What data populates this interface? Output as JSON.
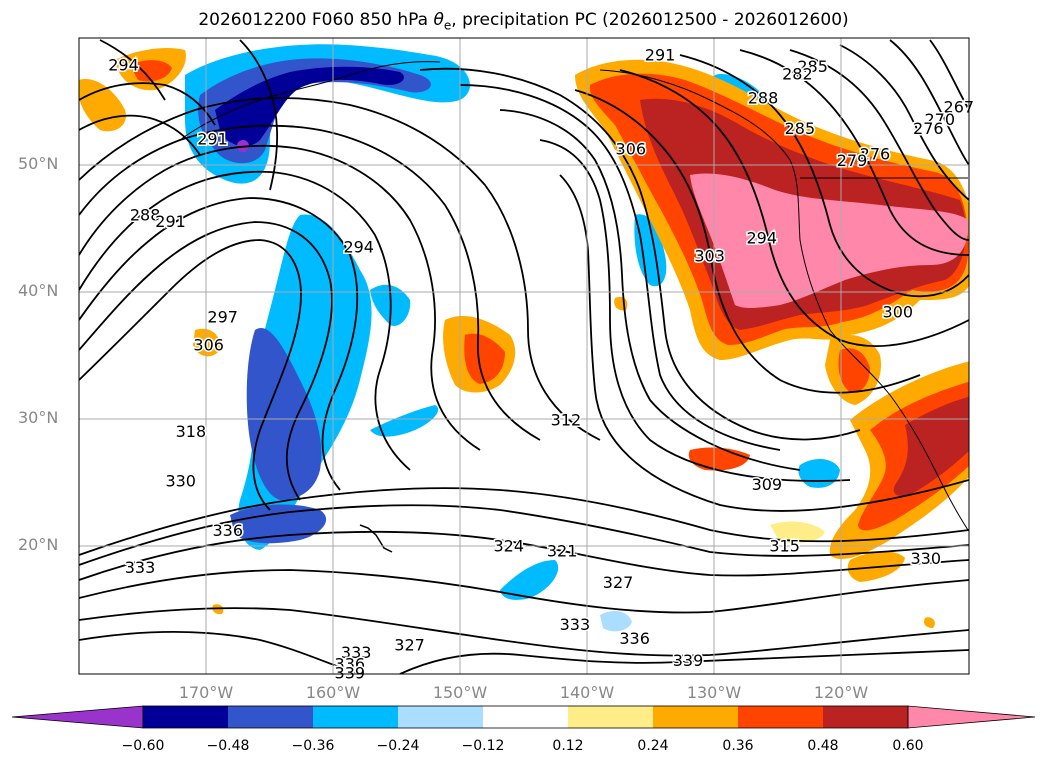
{
  "title": {
    "prefix": "2026012200 F060 850 hPa ",
    "theta": "θ",
    "theta_sub": "e",
    "suffix": ", precipitation PC (2026012500 - 2026012600)"
  },
  "latitude_labels": [
    "50°N",
    "40°N",
    "30°N",
    "20°N"
  ],
  "longitude_labels": [
    "170°W",
    "160°W",
    "150°W",
    "140°W",
    "130°W",
    "120°W"
  ],
  "colorbar": {
    "ticks": [
      "−0.60",
      "−0.48",
      "−0.36",
      "−0.24",
      "−0.12",
      "0.12",
      "0.24",
      "0.36",
      "0.48",
      "0.60"
    ],
    "colors": [
      "#9933cc",
      "#000099",
      "#3355cc",
      "#00bbff",
      "#aaddff",
      "#ffffff",
      "#ffee88",
      "#ffaa00",
      "#ff4400",
      "#bb2222",
      "#ff88aa"
    ]
  },
  "contour_labels": [
    {
      "text": "294",
      "lon": -176.5,
      "lat": 57.8
    },
    {
      "text": "291",
      "lon": -169.5,
      "lat": 52.0
    },
    {
      "text": "288",
      "lon": -174.8,
      "lat": 46.0
    },
    {
      "text": "291",
      "lon": -172.8,
      "lat": 45.5
    },
    {
      "text": "297",
      "lon": -168.7,
      "lat": 38.0
    },
    {
      "text": "306",
      "lon": -169.8,
      "lat": 35.8
    },
    {
      "text": "294",
      "lon": -158.0,
      "lat": 43.5
    },
    {
      "text": "291",
      "lon": -134.3,
      "lat": 58.6
    },
    {
      "text": "306",
      "lon": -136.6,
      "lat": 51.2
    },
    {
      "text": "285",
      "lon": -122.3,
      "lat": 57.7
    },
    {
      "text": "282",
      "lon": -123.5,
      "lat": 57.1
    },
    {
      "text": "288",
      "lon": -126.2,
      "lat": 55.2
    },
    {
      "text": "285",
      "lon": -123.3,
      "lat": 52.8
    },
    {
      "text": "267",
      "lon": -110.8,
      "lat": 54.5
    },
    {
      "text": "270",
      "lon": -112.3,
      "lat": 53.5
    },
    {
      "text": "276",
      "lon": -113.2,
      "lat": 52.8
    },
    {
      "text": "276",
      "lon": -117.4,
      "lat": 50.8
    },
    {
      "text": "279",
      "lon": -119.2,
      "lat": 50.3
    },
    {
      "text": "303",
      "lon": -130.4,
      "lat": 42.8
    },
    {
      "text": "294",
      "lon": -126.3,
      "lat": 44.2
    },
    {
      "text": "300",
      "lon": -115.6,
      "lat": 38.4
    },
    {
      "text": "312",
      "lon": -141.7,
      "lat": 29.9
    },
    {
      "text": "318",
      "lon": -171.2,
      "lat": 29.0
    },
    {
      "text": "330",
      "lon": -172.0,
      "lat": 25.1
    },
    {
      "text": "336",
      "lon": -168.3,
      "lat": 21.2
    },
    {
      "text": "333",
      "lon": -175.2,
      "lat": 18.3
    },
    {
      "text": "324",
      "lon": -146.2,
      "lat": 20.0
    },
    {
      "text": "321",
      "lon": -142.0,
      "lat": 19.6
    },
    {
      "text": "327",
      "lon": -137.6,
      "lat": 17.1
    },
    {
      "text": "315",
      "lon": -124.5,
      "lat": 20.0
    },
    {
      "text": "309",
      "lon": -125.9,
      "lat": 24.8
    },
    {
      "text": "330",
      "lon": -113.4,
      "lat": 19.0
    },
    {
      "text": "333",
      "lon": -141.0,
      "lat": 13.8
    },
    {
      "text": "336",
      "lon": -136.3,
      "lat": 12.7
    },
    {
      "text": "339",
      "lon": -132.1,
      "lat": 11.0
    },
    {
      "text": "327",
      "lon": -154.0,
      "lat": 12.2
    },
    {
      "text": "333",
      "lon": -158.2,
      "lat": 11.6
    },
    {
      "text": "336",
      "lon": -158.7,
      "lat": 10.7
    },
    {
      "text": "339",
      "lon": -158.7,
      "lat": 10.0
    }
  ]
}
